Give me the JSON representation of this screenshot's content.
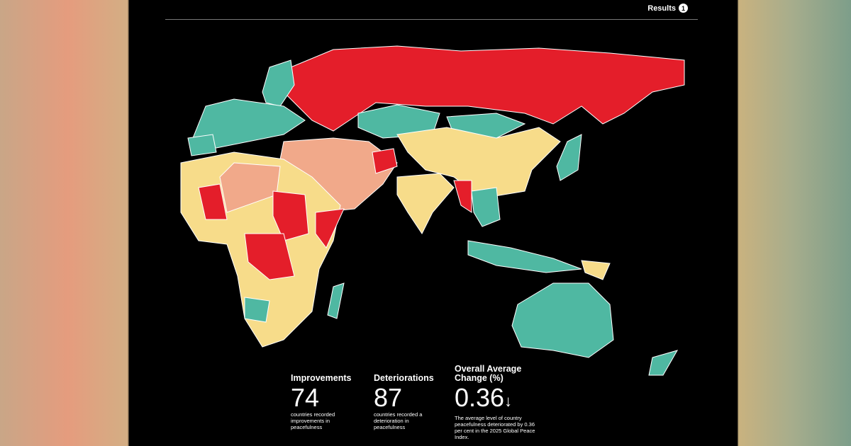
{
  "header": {
    "title": "Results",
    "badge": "1"
  },
  "stats": [
    {
      "label": "Improvements",
      "value": 74,
      "description": "countries recorded improvements in peacefulness"
    },
    {
      "label": "Deteriorations",
      "value": 87,
      "description": "countries recorded a deterioration in peacefulness"
    },
    {
      "label": "Overall Average Change (%)",
      "value": 0.36,
      "arrow": "↓",
      "description": "The average level of country peacefulness deteriorated by 0.36 per cent in the 2025 Global Peace Index."
    }
  ]
}
